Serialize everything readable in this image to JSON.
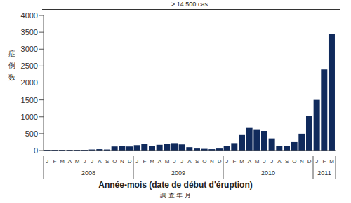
{
  "chart_data": {
    "type": "bar",
    "annotation": "> 14 500 cas",
    "y_label": "症例数",
    "x_label": "Année-mois (date de début d'éruption)",
    "x_label_secondary": "調 査 年 月",
    "categories": [
      "J",
      "F",
      "M",
      "A",
      "M",
      "J",
      "J",
      "A",
      "S",
      "O",
      "N",
      "D",
      "J",
      "F",
      "M",
      "A",
      "M",
      "J",
      "J",
      "A",
      "S",
      "O",
      "N",
      "D",
      "J",
      "F",
      "M",
      "A",
      "M",
      "J",
      "J",
      "A",
      "S",
      "O",
      "N",
      "D",
      "J",
      "F",
      "M"
    ],
    "category_years": [
      "2008",
      "2008",
      "2008",
      "2008",
      "2008",
      "2008",
      "2008",
      "2008",
      "2008",
      "2008",
      "2008",
      "2008",
      "2009",
      "2009",
      "2009",
      "2009",
      "2009",
      "2009",
      "2009",
      "2009",
      "2009",
      "2009",
      "2009",
      "2009",
      "2010",
      "2010",
      "2010",
      "2010",
      "2010",
      "2010",
      "2010",
      "2010",
      "2010",
      "2010",
      "2010",
      "2010",
      "2011",
      "2011",
      "2011"
    ],
    "values": [
      20,
      20,
      20,
      20,
      20,
      20,
      30,
      40,
      30,
      120,
      140,
      120,
      160,
      190,
      140,
      170,
      200,
      220,
      180,
      100,
      60,
      50,
      40,
      60,
      130,
      220,
      460,
      670,
      630,
      580,
      360,
      140,
      130,
      250,
      500,
      1030,
      1500,
      2400,
      3450
    ],
    "color": "#102a5c",
    "ylim": [
      0,
      4000
    ],
    "yticks": [
      0,
      500,
      1000,
      1500,
      2000,
      2500,
      3000,
      3500,
      4000
    ],
    "grid": false
  }
}
